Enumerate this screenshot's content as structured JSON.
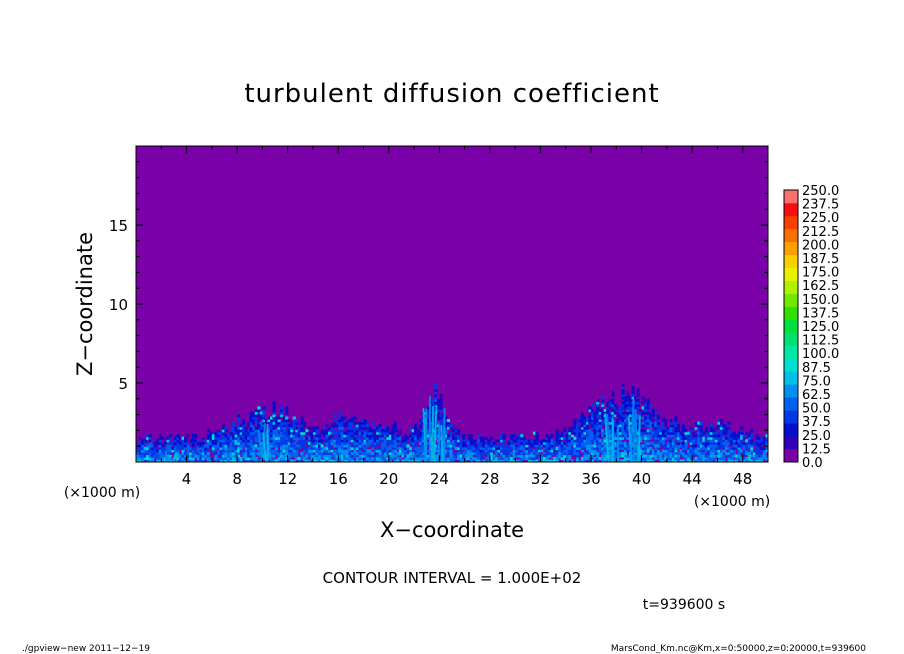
{
  "chart_data": {
    "type": "heatmap",
    "title": "turbulent diffusion coefficient",
    "xlabel": "X−coordinate",
    "ylabel": "Z−coordinate",
    "x_unit": "(×1000 m)",
    "y_unit": "(×1000 m)",
    "xlim": [
      0,
      50
    ],
    "ylim": [
      0,
      20
    ],
    "x_ticks": [
      4,
      8,
      12,
      16,
      20,
      24,
      28,
      32,
      36,
      40,
      44,
      48
    ],
    "y_ticks": [
      5,
      10,
      15
    ],
    "contour_interval": "CONTOUR INTERVAL = 1.000E+02",
    "time_label": "t=939600 s",
    "colorbar": {
      "levels": [
        "0.0",
        "12.5",
        "25.0",
        "37.5",
        "50.0",
        "62.5",
        "75.0",
        "87.5",
        "100.0",
        "112.5",
        "125.0",
        "137.5",
        "150.0",
        "162.5",
        "175.0",
        "187.5",
        "200.0",
        "212.5",
        "225.0",
        "237.5",
        "250.0"
      ],
      "colors": [
        "#7a00a8",
        "#3000b8",
        "#0010d0",
        "#0038e8",
        "#0060f0",
        "#0090f0",
        "#00c0e8",
        "#00e0d0",
        "#00e8a0",
        "#00e070",
        "#00e040",
        "#30e000",
        "#70e800",
        "#b0f000",
        "#e8f000",
        "#f8d000",
        "#f8a000",
        "#f87000",
        "#f84000",
        "#f81010",
        "#f87070"
      ]
    },
    "background_color": "#7a00a8",
    "field_max_height": 5
  },
  "footer": {
    "left": "./gpview−new   2011−12−19",
    "right": "MarsCond_Km.nc@Km,x=0:50000,z=0:20000,t=939600"
  }
}
